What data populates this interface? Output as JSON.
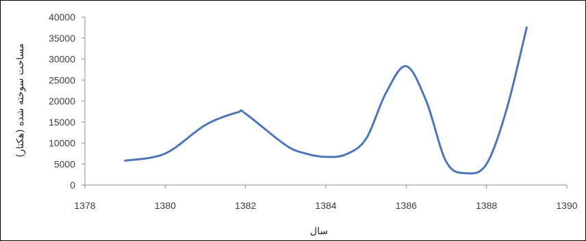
{
  "chart_data": {
    "type": "line",
    "title": "",
    "xlabel": "سال",
    "ylabel": "مساحت سوخته شده (هکتار)",
    "xlim": [
      1378,
      1390
    ],
    "ylim": [
      0,
      40000
    ],
    "x_ticks": [
      "1378",
      "1380",
      "1382",
      "1384",
      "1386",
      "1388",
      "1390"
    ],
    "y_ticks": [
      "0",
      "5000",
      "10000",
      "15000",
      "20000",
      "25000",
      "30000",
      "35000",
      "40000"
    ],
    "grid": false,
    "legend": "none",
    "series": [
      {
        "color": "#4a76b8",
        "x": [
          1379,
          1380,
          1381,
          1381.8,
          1382,
          1383,
          1383.5,
          1384,
          1384.5,
          1385,
          1385.5,
          1386,
          1386.5,
          1387,
          1387.5,
          1388,
          1388.5,
          1389
        ],
        "y": [
          5800,
          7500,
          14300,
          17300,
          17000,
          9500,
          7500,
          6700,
          7300,
          11000,
          22000,
          28300,
          20000,
          5500,
          2800,
          5000,
          18000,
          37500
        ]
      }
    ]
  }
}
